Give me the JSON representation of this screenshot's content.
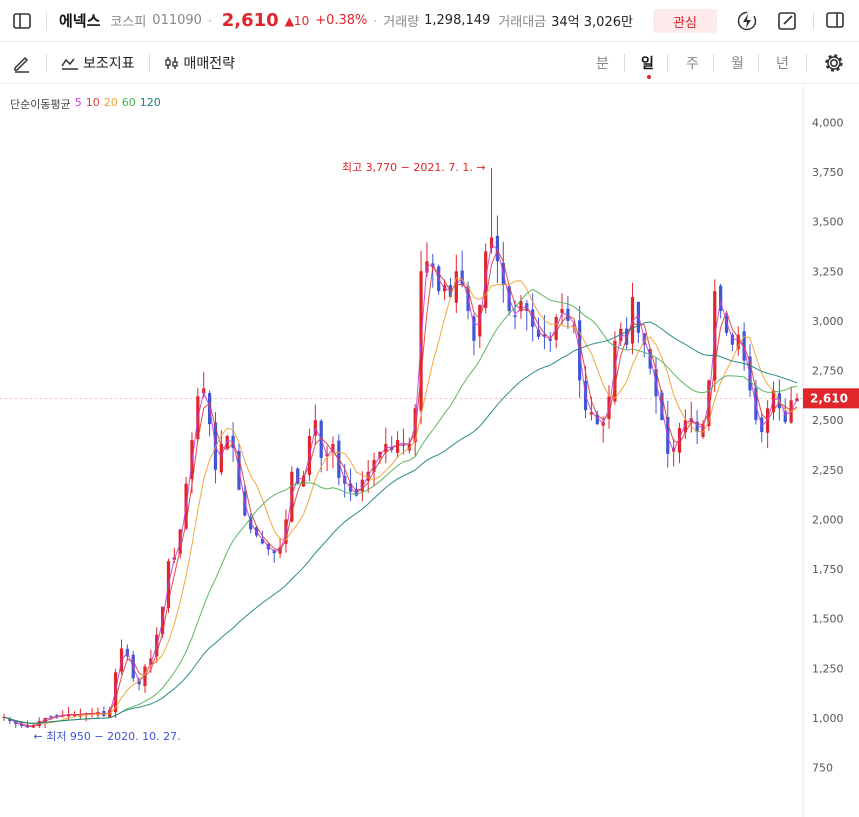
{
  "header": {
    "name": "에넥스",
    "market": "코스피",
    "code": "011090",
    "price": "2,610",
    "change": "▲10",
    "change_pct": "+0.38%",
    "volume_label": "거래량",
    "volume": "1,298,149",
    "amount_label": "거래대금",
    "amount": "34억 3,026만",
    "watch_label": "관심"
  },
  "toolbar": {
    "indicator_label": "보조지표",
    "strategy_label": "매매전략",
    "periods": [
      "분",
      "일",
      "주",
      "월",
      "년"
    ],
    "selected_period": "일"
  },
  "legend": {
    "title": "단순이동평균",
    "items": [
      {
        "label": "5",
        "color": "#c13fd9"
      },
      {
        "label": "10",
        "color": "#e03a3a"
      },
      {
        "label": "20",
        "color": "#f0a030"
      },
      {
        "label": "60",
        "color": "#4caf50"
      },
      {
        "label": "120",
        "color": "#17807e"
      }
    ]
  },
  "chart_data": {
    "type": "candlestick",
    "y_ticks": [
      750,
      1000,
      1250,
      1500,
      1750,
      2000,
      2250,
      2500,
      2750,
      3000,
      3250,
      3500,
      3750,
      4000
    ],
    "ylim": [
      625,
      4100
    ],
    "current_price": 2610,
    "current_price_label": "2,610",
    "up_color": "#e0252b",
    "down_color": "#3f56d6",
    "max_annotation": "최고 3,770 − 2021. 7. 1.",
    "max_value": 3770,
    "min_annotation": "최저 950 − 2020. 10. 27.",
    "min_value": 950,
    "closes_approx": [
      1005,
      985,
      970,
      960,
      952,
      965,
      985,
      1000,
      1005,
      1010,
      1015,
      1020,
      1015,
      1020,
      1025,
      1020,
      1030,
      1010,
      1040,
      1230,
      1350,
      1310,
      1200,
      1170,
      1260,
      1300,
      1420,
      1560,
      1790,
      1810,
      1950,
      2180,
      2400,
      2620,
      2660,
      2480,
      2250,
      2380,
      2420,
      2360,
      2150,
      2020,
      1950,
      1920,
      1880,
      1850,
      1830,
      1860,
      2000,
      2240,
      2180,
      2220,
      2420,
      2500,
      2310,
      2330,
      2380,
      2210,
      2180,
      2140,
      2120,
      2200,
      2240,
      2300,
      2340,
      2380,
      2350,
      2400,
      2370,
      2380,
      2560,
      3250,
      3300,
      3270,
      3150,
      3180,
      3120,
      3250,
      3180,
      3050,
      2900,
      3080,
      3350,
      3420,
      3300,
      3180,
      3050,
      3020,
      3100,
      3050,
      2970,
      2920,
      2920,
      2900,
      3020,
      3060,
      3000,
      2980,
      2700,
      2550,
      2540,
      2480,
      2490,
      2620,
      2900,
      2960,
      2880,
      3120,
      2940,
      2880,
      2760,
      2620,
      2500,
      2330,
      2360,
      2460,
      2500,
      2510,
      2440,
      2480,
      2700,
      3150,
      3050,
      2940,
      2880,
      2930,
      2800,
      2650,
      2500,
      2440,
      2560,
      2650,
      2560,
      2490,
      2600,
      2610
    ]
  }
}
